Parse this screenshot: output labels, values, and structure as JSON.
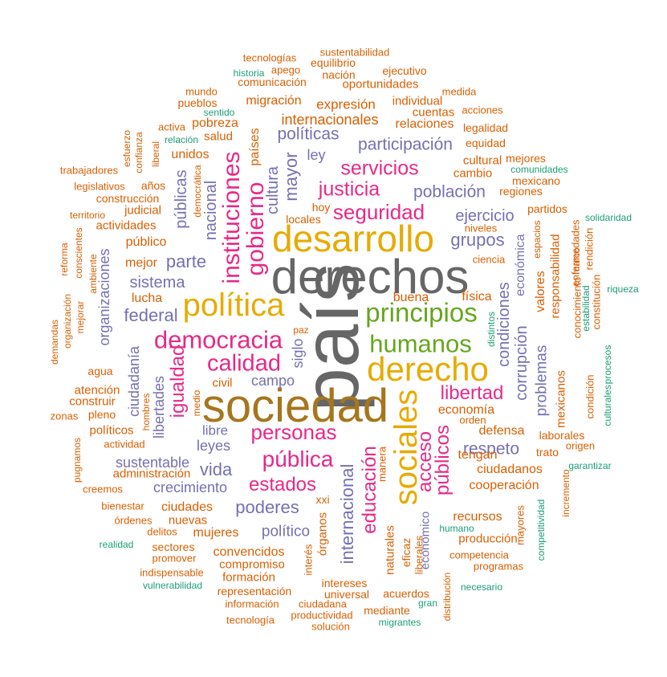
{
  "words": [
    {
      "text": "país",
      "color": "#666666"
    },
    {
      "text": "derechos",
      "color": "#666666"
    },
    {
      "text": "sociedad",
      "color": "#a6761d"
    },
    {
      "text": "desarrollo",
      "color": "#e6ab02"
    },
    {
      "text": "derecho",
      "color": "#e6ab02"
    },
    {
      "text": "política",
      "color": "#e6ab02"
    },
    {
      "text": "sociales",
      "color": "#e6ab02"
    },
    {
      "text": "principios",
      "color": "#66a61e"
    },
    {
      "text": "humanos",
      "color": "#66a61e"
    },
    {
      "text": "democracia",
      "color": "#e7298a"
    },
    {
      "text": "instituciones",
      "color": "#e7298a"
    },
    {
      "text": "gobierno",
      "color": "#e7298a"
    },
    {
      "text": "calidad",
      "color": "#e7298a"
    },
    {
      "text": "seguridad",
      "color": "#e7298a"
    },
    {
      "text": "justicia",
      "color": "#e7298a"
    },
    {
      "text": "servicios",
      "color": "#e7298a"
    },
    {
      "text": "pública",
      "color": "#e7298a"
    },
    {
      "text": "personas",
      "color": "#e7298a"
    },
    {
      "text": "estados",
      "color": "#e7298a"
    },
    {
      "text": "libertad",
      "color": "#e7298a"
    },
    {
      "text": "igualdad",
      "color": "#e7298a"
    },
    {
      "text": "educación",
      "color": "#e7298a"
    },
    {
      "text": "públicos",
      "color": "#e7298a"
    },
    {
      "text": "acceso",
      "color": "#e7298a"
    },
    {
      "text": "población",
      "color": "#7570b3"
    },
    {
      "text": "participación",
      "color": "#7570b3"
    },
    {
      "text": "políticas",
      "color": "#7570b3"
    },
    {
      "text": "grupos",
      "color": "#7570b3"
    },
    {
      "text": "ejercicio",
      "color": "#7570b3"
    },
    {
      "text": "parte",
      "color": "#7570b3"
    },
    {
      "text": "sistema",
      "color": "#7570b3"
    },
    {
      "text": "federal",
      "color": "#7570b3"
    },
    {
      "text": "poderes",
      "color": "#7570b3"
    },
    {
      "text": "vida",
      "color": "#7570b3"
    },
    {
      "text": "respeto",
      "color": "#7570b3"
    },
    {
      "text": "mayor",
      "color": "#7570b3"
    },
    {
      "text": "internacional",
      "color": "#7570b3"
    },
    {
      "text": "condiciones",
      "color": "#7570b3"
    },
    {
      "text": "corrupción",
      "color": "#7570b3"
    },
    {
      "text": "problemas",
      "color": "#7570b3"
    },
    {
      "text": "nacional",
      "color": "#7570b3"
    },
    {
      "text": "públicas",
      "color": "#7570b3"
    },
    {
      "text": "cultura",
      "color": "#7570b3"
    },
    {
      "text": "organizaciones",
      "color": "#7570b3"
    },
    {
      "text": "sustentable",
      "color": "#7570b3"
    },
    {
      "text": "crecimiento",
      "color": "#7570b3"
    },
    {
      "text": "político",
      "color": "#7570b3"
    },
    {
      "text": "ciudadanía",
      "color": "#7570b3"
    },
    {
      "text": "libertades",
      "color": "#7570b3"
    },
    {
      "text": "leyes",
      "color": "#7570b3"
    },
    {
      "text": "libre",
      "color": "#7570b3"
    },
    {
      "text": "campo",
      "color": "#7570b3"
    },
    {
      "text": "siglo",
      "color": "#7570b3"
    },
    {
      "text": "ley",
      "color": "#7570b3"
    },
    {
      "text": "países",
      "color": "#d95f02"
    },
    {
      "text": "internacionales",
      "color": "#d95f02"
    },
    {
      "text": "relaciones",
      "color": "#d95f02"
    },
    {
      "text": "expresión",
      "color": "#d95f02"
    },
    {
      "text": "migración",
      "color": "#d95f02"
    },
    {
      "text": "individual",
      "color": "#d95f02"
    },
    {
      "text": "cuentas",
      "color": "#d95f02"
    },
    {
      "text": "oportunidades",
      "color": "#d95f02"
    },
    {
      "text": "nación",
      "color": "#d95f02"
    },
    {
      "text": "ejecutivo",
      "color": "#d95f02"
    },
    {
      "text": "equilibrio",
      "color": "#d95f02"
    },
    {
      "text": "sustentabilidad",
      "color": "#d95f02"
    },
    {
      "text": "tecnologías",
      "color": "#d95f02"
    },
    {
      "text": "apego",
      "color": "#d95f02"
    },
    {
      "text": "historia",
      "color": "#1b9e77"
    },
    {
      "text": "comunicación",
      "color": "#d95f02"
    },
    {
      "text": "medida",
      "color": "#d95f02"
    },
    {
      "text": "mundo",
      "color": "#d95f02"
    },
    {
      "text": "pueblos",
      "color": "#d95f02"
    },
    {
      "text": "sentido",
      "color": "#1b9e77"
    },
    {
      "text": "pobreza",
      "color": "#d95f02"
    },
    {
      "text": "activa",
      "color": "#d95f02"
    },
    {
      "text": "salud",
      "color": "#d95f02"
    },
    {
      "text": "relación",
      "color": "#1b9e77"
    },
    {
      "text": "unidos",
      "color": "#d95f02"
    },
    {
      "text": "acciones",
      "color": "#d95f02"
    },
    {
      "text": "legalidad",
      "color": "#d95f02"
    },
    {
      "text": "equidad",
      "color": "#d95f02"
    },
    {
      "text": "cultural",
      "color": "#d95f02"
    },
    {
      "text": "mejores",
      "color": "#d95f02"
    },
    {
      "text": "comunidades",
      "color": "#1b9e77"
    },
    {
      "text": "cambio",
      "color": "#d95f02"
    },
    {
      "text": "mexicano",
      "color": "#d95f02"
    },
    {
      "text": "regiones",
      "color": "#d95f02"
    },
    {
      "text": "partidos",
      "color": "#d95f02"
    },
    {
      "text": "solidaridad",
      "color": "#1b9e77"
    },
    {
      "text": "trabajadores",
      "color": "#d95f02"
    },
    {
      "text": "esfuerzo",
      "color": "#d95f02"
    },
    {
      "text": "confianza",
      "color": "#d95f02"
    },
    {
      "text": "liberal",
      "color": "#d95f02"
    },
    {
      "text": "legislativos",
      "color": "#d95f02"
    },
    {
      "text": "años",
      "color": "#d95f02"
    },
    {
      "text": "democrática",
      "color": "#d95f02"
    },
    {
      "text": "construcción",
      "color": "#d95f02"
    },
    {
      "text": "judicial",
      "color": "#d95f02"
    },
    {
      "text": "territorio",
      "color": "#d95f02"
    },
    {
      "text": "actividades",
      "color": "#d95f02"
    },
    {
      "text": "hoy",
      "color": "#d95f02"
    },
    {
      "text": "locales",
      "color": "#d95f02"
    },
    {
      "text": "niveles",
      "color": "#d95f02"
    },
    {
      "text": "espacios",
      "color": "#d95f02"
    },
    {
      "text": "público",
      "color": "#d95f02"
    },
    {
      "text": "reforma",
      "color": "#d95f02"
    },
    {
      "text": "conscientes",
      "color": "#d95f02"
    },
    {
      "text": "mejor",
      "color": "#d95f02"
    },
    {
      "text": "ciencia",
      "color": "#d95f02"
    },
    {
      "text": "enfermedades",
      "color": "#d95f02"
    },
    {
      "text": "rendición",
      "color": "#d95f02"
    },
    {
      "text": "económica",
      "color": "#7570b3"
    },
    {
      "text": "lucha",
      "color": "#d95f02"
    },
    {
      "text": "ambiente",
      "color": "#d95f02"
    },
    {
      "text": "física",
      "color": "#d95f02"
    },
    {
      "text": "buena",
      "color": "#d95f02"
    },
    {
      "text": "valores",
      "color": "#d95f02"
    },
    {
      "text": "responsabilidad",
      "color": "#d95f02"
    },
    {
      "text": "conocimiento",
      "color": "#d95f02"
    },
    {
      "text": "marco",
      "color": "#d95f02"
    },
    {
      "text": "estabilidad",
      "color": "#1b9e77"
    },
    {
      "text": "constitución",
      "color": "#d95f02"
    },
    {
      "text": "riqueza",
      "color": "#1b9e77"
    },
    {
      "text": "organización",
      "color": "#d95f02"
    },
    {
      "text": "mejorar",
      "color": "#d95f02"
    },
    {
      "text": "demandas",
      "color": "#d95f02"
    },
    {
      "text": "paz",
      "color": "#d95f02"
    },
    {
      "text": "distintos",
      "color": "#1b9e77"
    },
    {
      "text": "agua",
      "color": "#d95f02"
    },
    {
      "text": "civil",
      "color": "#d95f02"
    },
    {
      "text": "procesos",
      "color": "#1b9e77"
    },
    {
      "text": "culturales",
      "color": "#1b9e77"
    },
    {
      "text": "condición",
      "color": "#d95f02"
    },
    {
      "text": "mexicanos",
      "color": "#d95f02"
    },
    {
      "text": "atención",
      "color": "#d95f02"
    },
    {
      "text": "construir",
      "color": "#d95f02"
    },
    {
      "text": "hombres",
      "color": "#d95f02"
    },
    {
      "text": "medio",
      "color": "#d95f02"
    },
    {
      "text": "zonas",
      "color": "#d95f02"
    },
    {
      "text": "pleno",
      "color": "#d95f02"
    },
    {
      "text": "economía",
      "color": "#d95f02"
    },
    {
      "text": "orden",
      "color": "#d95f02"
    },
    {
      "text": "defensa",
      "color": "#d95f02"
    },
    {
      "text": "políticos",
      "color": "#d95f02"
    },
    {
      "text": "actividad",
      "color": "#d95f02"
    },
    {
      "text": "laborales",
      "color": "#d95f02"
    },
    {
      "text": "origen",
      "color": "#d95f02"
    },
    {
      "text": "trato",
      "color": "#d95f02"
    },
    {
      "text": "tengan",
      "color": "#d95f02"
    },
    {
      "text": "manera",
      "color": "#d95f02"
    },
    {
      "text": "ciudadanos",
      "color": "#d95f02"
    },
    {
      "text": "garantizar",
      "color": "#1b9e77"
    },
    {
      "text": "incremento",
      "color": "#d95f02"
    },
    {
      "text": "pugnamos",
      "color": "#d95f02"
    },
    {
      "text": "administración",
      "color": "#d95f02"
    },
    {
      "text": "creemos",
      "color": "#d95f02"
    },
    {
      "text": "cooperación",
      "color": "#d95f02"
    },
    {
      "text": "xxi",
      "color": "#d95f02"
    },
    {
      "text": "bienestar",
      "color": "#d95f02"
    },
    {
      "text": "ciudades",
      "color": "#d95f02"
    },
    {
      "text": "recursos",
      "color": "#d95f02"
    },
    {
      "text": "competitividad",
      "color": "#1b9e77"
    },
    {
      "text": "mayores",
      "color": "#d95f02"
    },
    {
      "text": "órdenes",
      "color": "#d95f02"
    },
    {
      "text": "nuevas",
      "color": "#d95f02"
    },
    {
      "text": "humano",
      "color": "#1b9e77"
    },
    {
      "text": "delitos",
      "color": "#d95f02"
    },
    {
      "text": "mujeres",
      "color": "#d95f02"
    },
    {
      "text": "producción",
      "color": "#d95f02"
    },
    {
      "text": "realidad",
      "color": "#1b9e77"
    },
    {
      "text": "sectores",
      "color": "#d95f02"
    },
    {
      "text": "órganos",
      "color": "#d95f02"
    },
    {
      "text": "convencidos",
      "color": "#d95f02"
    },
    {
      "text": "promover",
      "color": "#d95f02"
    },
    {
      "text": "interés",
      "color": "#d95f02"
    },
    {
      "text": "naturales",
      "color": "#d95f02"
    },
    {
      "text": "eficaz",
      "color": "#d95f02"
    },
    {
      "text": "económico",
      "color": "#7570b3"
    },
    {
      "text": "liberales",
      "color": "#d95f02"
    },
    {
      "text": "competencia",
      "color": "#d95f02"
    },
    {
      "text": "compromiso",
      "color": "#d95f02"
    },
    {
      "text": "indispensable",
      "color": "#d95f02"
    },
    {
      "text": "programas",
      "color": "#d95f02"
    },
    {
      "text": "formación",
      "color": "#d95f02"
    },
    {
      "text": "vulnerabilidad",
      "color": "#1b9e77"
    },
    {
      "text": "intereses",
      "color": "#d95f02"
    },
    {
      "text": "representación",
      "color": "#d95f02"
    },
    {
      "text": "universal",
      "color": "#d95f02"
    },
    {
      "text": "acuerdos",
      "color": "#d95f02"
    },
    {
      "text": "distribución",
      "color": "#d95f02"
    },
    {
      "text": "necesario",
      "color": "#1b9e77"
    },
    {
      "text": "información",
      "color": "#d95f02"
    },
    {
      "text": "ciudadana",
      "color": "#d95f02"
    },
    {
      "text": "gran",
      "color": "#1b9e77"
    },
    {
      "text": "mediante",
      "color": "#d95f02"
    },
    {
      "text": "tecnología",
      "color": "#d95f02"
    },
    {
      "text": "productividad",
      "color": "#d95f02"
    },
    {
      "text": "solución",
      "color": "#d95f02"
    },
    {
      "text": "migrantes",
      "color": "#1b9e77"
    }
  ]
}
